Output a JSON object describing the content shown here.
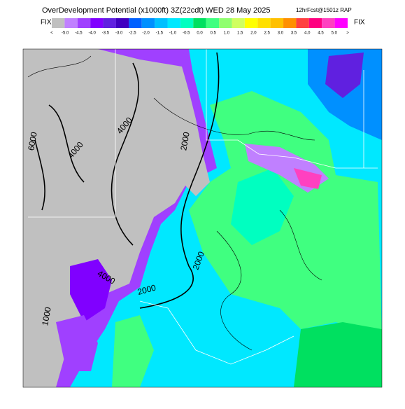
{
  "header": {
    "title": "OverDevelopment Potential (x1000ft) 3Z(22cdt) WED 28 May 2025",
    "forecast": "12hrFcst@1501z RAP",
    "fix_left": "FIX",
    "fix_right": "FIX"
  },
  "colorbar": {
    "labels": [
      "<",
      "-5.0",
      "-4.5",
      "-4.0",
      "-3.5",
      "-3.0",
      "-2.5",
      "-2.0",
      "-1.5",
      "-1.0",
      "-0.5",
      "0.0",
      "0.5",
      "1.0",
      "1.5",
      "2.0",
      "2.5",
      "3.0",
      "3.5",
      "4.0",
      "4.5",
      "5.0",
      ">"
    ],
    "colors": [
      "#c0c0c0",
      "#c080ff",
      "#a040ff",
      "#8000ff",
      "#6020e0",
      "#4000c0",
      "#0060ff",
      "#0090ff",
      "#00c0ff",
      "#00e8ff",
      "#00ffc0",
      "#00e060",
      "#40ff80",
      "#90ff70",
      "#d0ff60",
      "#ffff00",
      "#ffe000",
      "#ffc000",
      "#ff9000",
      "#ff4040",
      "#ff0080",
      "#ff40c0",
      "#ff00ff"
    ]
  },
  "map": {
    "contour_labels": [
      "6000",
      "4000",
      "4000",
      "2000",
      "2000",
      "2000",
      "4000",
      "1000"
    ]
  }
}
